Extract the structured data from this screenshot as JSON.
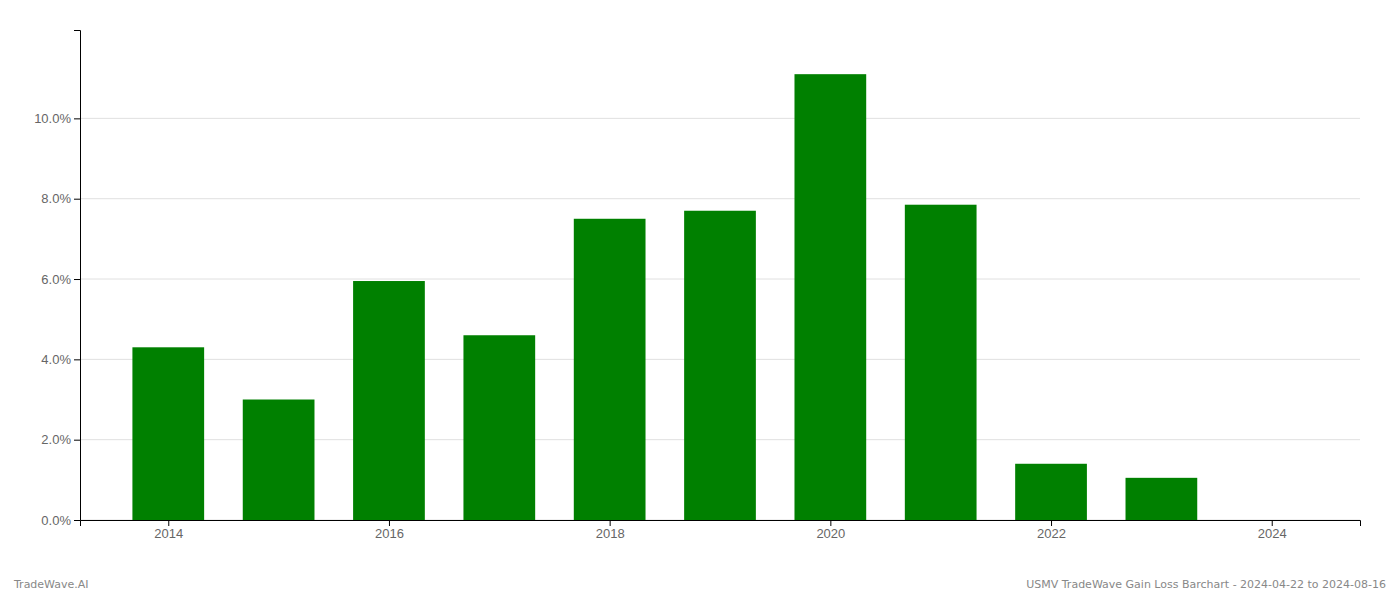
{
  "chart_data": {
    "type": "bar",
    "x": [
      2014,
      2015,
      2016,
      2017,
      2018,
      2019,
      2020,
      2021,
      2022,
      2023,
      2024
    ],
    "values": [
      0.043,
      0.03,
      0.0595,
      0.046,
      0.075,
      0.077,
      0.111,
      0.0785,
      0.014,
      0.0105,
      0.0
    ],
    "color": "#008000",
    "xlim": [
      2013.2,
      2024.8
    ],
    "xticks": [
      2014,
      2016,
      2018,
      2020,
      2022,
      2024
    ],
    "ylim": [
      0,
      0.122
    ],
    "yticks": [
      {
        "value": 0.0,
        "label": "0.0%"
      },
      {
        "value": 0.02,
        "label": "2.0%"
      },
      {
        "value": 0.04,
        "label": "4.0%"
      },
      {
        "value": 0.06,
        "label": "6.0%"
      },
      {
        "value": 0.08,
        "label": "8.0%"
      },
      {
        "value": 0.1,
        "label": "10.0%"
      }
    ],
    "grid": true,
    "annotations": [
      "TradeWave.AI",
      "USMV TradeWave Gain Loss Barchart - 2024-04-22 to 2024-08-16"
    ]
  }
}
